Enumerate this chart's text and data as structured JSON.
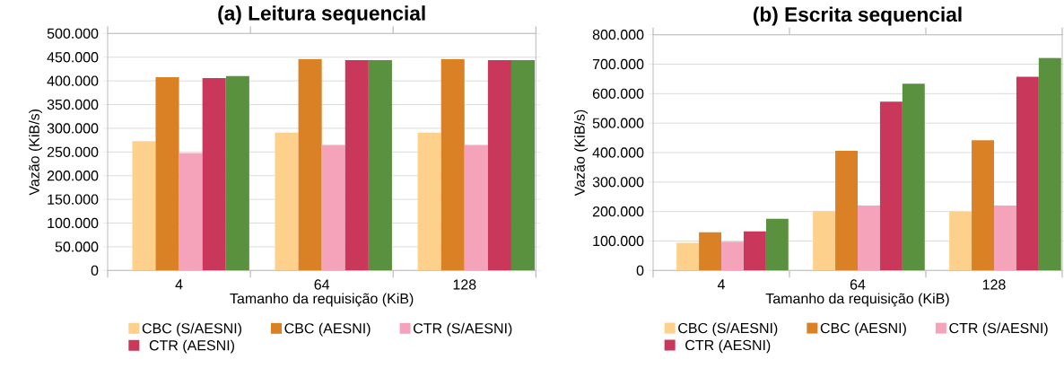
{
  "chart_data": [
    {
      "type": "bar",
      "title": "(a) Leitura sequencial",
      "xlabel": "Tamanho da requisição (KiB)",
      "ylabel": "Vazão (KiB/s)",
      "categories": [
        "4",
        "64",
        "128"
      ],
      "series": [
        {
          "name": "CBC (S/AESNI)",
          "color": "#fdd08c",
          "values": [
            273000,
            291000,
            291000
          ]
        },
        {
          "name": "CBC (AESNI)",
          "color": "#db8125",
          "values": [
            408000,
            446000,
            446000
          ]
        },
        {
          "name": "CTR (S/AESNI)",
          "color": "#f5a3bb",
          "values": [
            248000,
            265000,
            265000
          ]
        },
        {
          "name": "CTR (AESNI)",
          "color": "#c9385b",
          "values": [
            406000,
            444000,
            444000
          ]
        },
        {
          "color": "#5a913f",
          "values": [
            410000,
            444000,
            444000
          ]
        }
      ],
      "ylim": [
        0,
        500000
      ],
      "yticks": [
        0,
        {
          "value": 50000,
          "label": "50.000"
        },
        {
          "value": 100000,
          "label": "100.000"
        },
        {
          "value": 150000,
          "label": "150.000"
        },
        {
          "value": 200000,
          "label": "200.000"
        },
        {
          "value": 250000,
          "label": "250.000"
        },
        {
          "value": 300000,
          "label": "300.000"
        },
        {
          "value": 350000,
          "label": "350.000"
        },
        {
          "value": 400000,
          "label": "400.000"
        },
        {
          "value": 450000,
          "label": "450.000"
        },
        {
          "value": 500000,
          "label": "500.000"
        }
      ],
      "grid": "y",
      "legend": "bottom"
    },
    {
      "type": "bar",
      "title": "(b) Escrita sequencial",
      "xlabel": "Tamanho da requisição (KiB)",
      "ylabel": "Vazão (KiB/s)",
      "categories": [
        "4",
        "64",
        "128"
      ],
      "series": [
        {
          "name": "CBC (S/AESNI)",
          "color": "#fdd08c",
          "values": [
            94000,
            201000,
            199000
          ]
        },
        {
          "name": "CBC (AESNI)",
          "color": "#db8125",
          "values": [
            130000,
            406000,
            442000
          ]
        },
        {
          "name": "CTR (S/AESNI)",
          "color": "#f5a3bb",
          "values": [
            98000,
            220000,
            220000
          ]
        },
        {
          "name": "CTR (AESNI)",
          "color": "#c9385b",
          "values": [
            133000,
            573000,
            657000
          ]
        },
        {
          "color": "#5a913f",
          "values": [
            175000,
            634000,
            721000
          ]
        }
      ],
      "ylim": [
        0,
        800000
      ],
      "yticks": [
        0,
        {
          "value": 100000,
          "label": "100.000"
        },
        {
          "value": 200000,
          "label": "200.000"
        },
        {
          "value": 300000,
          "label": "300.000"
        },
        {
          "value": 400000,
          "label": "400.000"
        },
        {
          "value": 500000,
          "label": "500.000"
        },
        {
          "value": 600000,
          "label": "600.000"
        },
        {
          "value": 700000,
          "label": "700.000"
        },
        {
          "value": 800000,
          "label": "800.000"
        }
      ],
      "grid": "y",
      "legend": "bottom"
    }
  ]
}
